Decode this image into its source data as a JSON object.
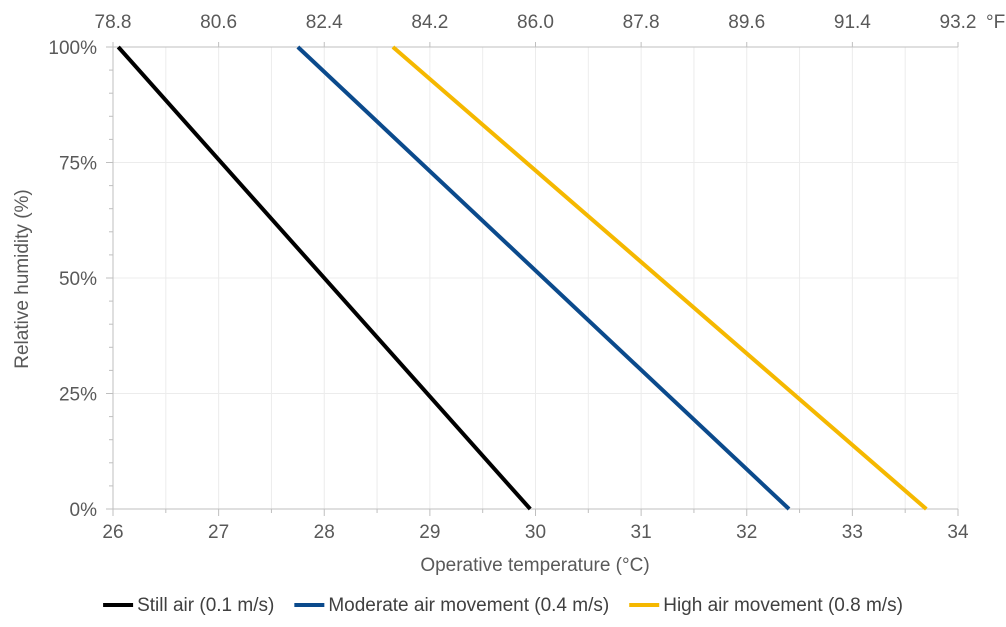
{
  "chart_data": {
    "type": "line",
    "xlabel": "Operative temperature (°C)",
    "ylabel": "Relative humidity (%)",
    "xlim": [
      26,
      34
    ],
    "ylim": [
      0,
      100
    ],
    "x_ticks": [
      "26",
      "27",
      "28",
      "29",
      "30",
      "31",
      "32",
      "33",
      "34"
    ],
    "y_ticks": [
      "0%",
      "25%",
      "50%",
      "75%",
      "100%"
    ],
    "secondary_x_ticks": [
      "78.8",
      "80.6",
      "82.4",
      "84.2",
      "86.0",
      "87.8",
      "89.6",
      "91.4",
      "93.2"
    ],
    "secondary_x_unit": "°F",
    "grid": true,
    "legend_position": "bottom",
    "series": [
      {
        "name": "Still air (0.1 m/s)",
        "color": "#000000",
        "x": [
          26.05,
          29.95
        ],
        "y": [
          100,
          0
        ]
      },
      {
        "name": "Moderate air movement (0.4 m/s)",
        "color": "#0B4A8C",
        "x": [
          27.75,
          32.4
        ],
        "y": [
          100,
          0
        ]
      },
      {
        "name": "High air movement (0.8 m/s)",
        "color": "#F5B800",
        "x": [
          28.65,
          33.7
        ],
        "y": [
          100,
          0
        ]
      }
    ]
  }
}
